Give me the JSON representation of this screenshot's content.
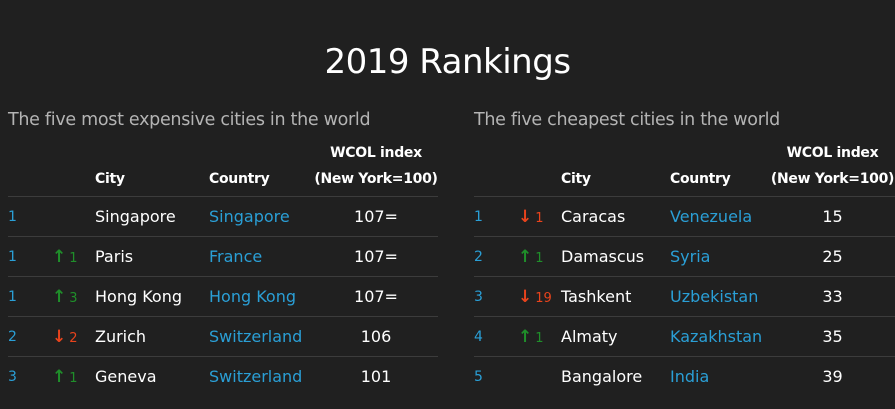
{
  "title": "2019 Rankings",
  "colors": {
    "accent": "#2a9fd6",
    "up": "#1f8f2a",
    "down": "#e8431c",
    "background": "#202020"
  },
  "headers": {
    "city": "City",
    "country": "Country",
    "index_line1": "WCOL index",
    "index_line2": "(New York=100)"
  },
  "expensive": {
    "subtitle": "The five most expensive cities in the world",
    "rows": [
      {
        "rank": "1",
        "dir": "",
        "change": "",
        "city": "Singapore",
        "country": "Singapore",
        "index": "107="
      },
      {
        "rank": "1",
        "dir": "up",
        "change": "1",
        "city": "Paris",
        "country": "France",
        "index": "107="
      },
      {
        "rank": "1",
        "dir": "up",
        "change": "3",
        "city": "Hong Kong",
        "country": "Hong Kong",
        "index": "107="
      },
      {
        "rank": "2",
        "dir": "down",
        "change": "2",
        "city": "Zurich",
        "country": "Switzerland",
        "index": "106"
      },
      {
        "rank": "3",
        "dir": "up",
        "change": "1",
        "city": "Geneva",
        "country": "Switzerland",
        "index": "101"
      }
    ]
  },
  "cheapest": {
    "subtitle": "The five cheapest cities in the world",
    "rows": [
      {
        "rank": "1",
        "dir": "down",
        "change": "1",
        "city": "Caracas",
        "country": "Venezuela",
        "index": "15"
      },
      {
        "rank": "2",
        "dir": "up",
        "change": "1",
        "city": "Damascus",
        "country": "Syria",
        "index": "25"
      },
      {
        "rank": "3",
        "dir": "down",
        "change": "19",
        "city": "Tashkent",
        "country": "Uzbekistan",
        "index": "33"
      },
      {
        "rank": "4",
        "dir": "up",
        "change": "1",
        "city": "Almaty",
        "country": "Kazakhstan",
        "index": "35"
      },
      {
        "rank": "5",
        "dir": "",
        "change": "",
        "city": "Bangalore",
        "country": "India",
        "index": "39"
      }
    ]
  }
}
